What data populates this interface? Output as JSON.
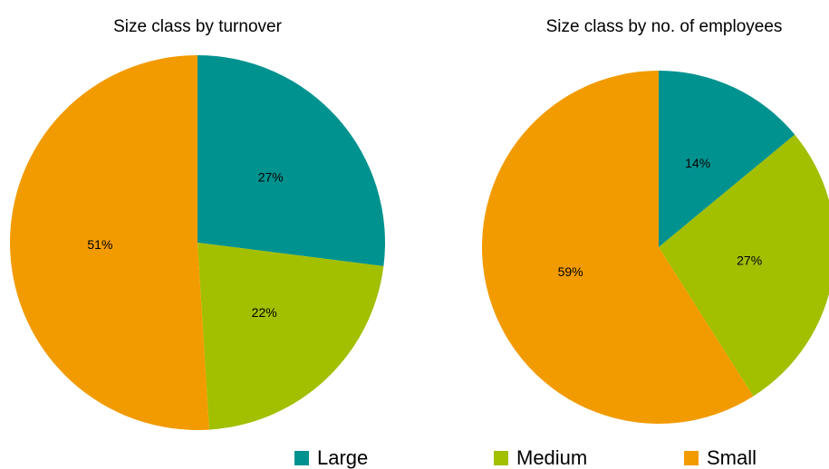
{
  "chart_data": [
    {
      "type": "pie",
      "title": "Size class by turnover",
      "categories": [
        "Large",
        "Medium",
        "Small"
      ],
      "values": [
        27,
        22,
        51
      ],
      "value_labels": [
        "27%",
        "22%",
        "51%"
      ],
      "colors": [
        "#00928f",
        "#a2bf00",
        "#f29b00"
      ]
    },
    {
      "type": "pie",
      "title": "Size class by no. of employees",
      "categories": [
        "Large",
        "Medium",
        "Small"
      ],
      "values": [
        14,
        27,
        59
      ],
      "value_labels": [
        "14%",
        "27%",
        "59%"
      ],
      "colors": [
        "#00928f",
        "#a2bf00",
        "#f29b00"
      ]
    }
  ]
}
